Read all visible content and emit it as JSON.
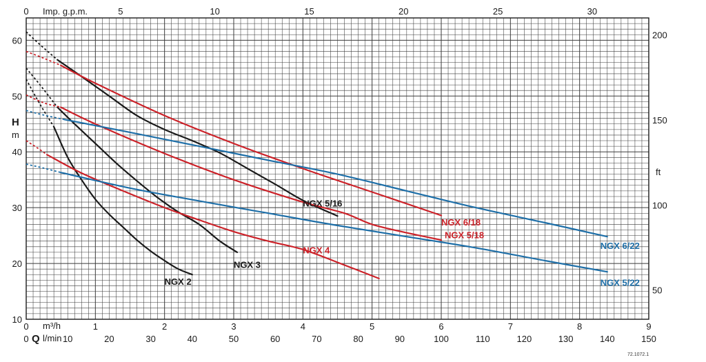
{
  "chart_data": {
    "type": "line",
    "title": "",
    "axes": {
      "bottom_primary": {
        "label": "m³/h",
        "range": [
          0,
          9
        ],
        "ticks": [
          0,
          1,
          2,
          3,
          4,
          5,
          6,
          7,
          8,
          9
        ],
        "tick_labels": [
          "0",
          "1",
          "2",
          "3",
          "4",
          "5",
          "6",
          "7",
          "8",
          "9"
        ]
      },
      "bottom_secondary": {
        "prefix": "Q",
        "label": "l/min",
        "range": [
          0,
          150
        ],
        "tick_labels": [
          "0",
          "10",
          "20",
          "30",
          "40",
          "50",
          "60",
          "70",
          "80",
          "90",
          "100",
          "110",
          "120",
          "130",
          "140",
          "150"
        ]
      },
      "top": {
        "label": "Imp. g.p.m.",
        "range": [
          0,
          33
        ],
        "ticks": [
          0,
          5,
          10,
          15,
          20,
          25,
          30
        ],
        "tick_labels": [
          "0",
          "5",
          "10",
          "15",
          "20",
          "25",
          "30"
        ]
      },
      "left": {
        "label_main": "H",
        "label_unit": "m",
        "range": [
          10,
          64
        ],
        "ticks": [
          10,
          20,
          30,
          40,
          50,
          60
        ],
        "tick_labels": [
          "10",
          "20",
          "30",
          "40",
          "50",
          "60"
        ]
      },
      "right": {
        "label": "ft",
        "range": [
          32.8,
          210
        ],
        "ticks": [
          50,
          100,
          150,
          200
        ],
        "tick_labels": [
          "50",
          "100",
          "150",
          "200"
        ]
      }
    },
    "grid": true,
    "series": [
      {
        "name": "NGX 2",
        "color": "#1a1a1a",
        "dashed": [
          [
            0,
            53
          ],
          [
            0.2,
            48.5
          ],
          [
            0.4,
            44.5
          ]
        ],
        "points": [
          [
            0.4,
            44.5
          ],
          [
            0.6,
            39
          ],
          [
            0.8,
            35
          ],
          [
            1.0,
            31.5
          ],
          [
            1.2,
            28.8
          ],
          [
            1.4,
            26.5
          ],
          [
            1.6,
            24.2
          ],
          [
            1.8,
            22.2
          ],
          [
            2.0,
            20.5
          ],
          [
            2.2,
            19
          ],
          [
            2.4,
            18
          ]
        ]
      },
      {
        "name": "NGX 3",
        "color": "#1a1a1a",
        "dashed": [
          [
            0,
            55
          ],
          [
            0.2,
            52
          ],
          [
            0.45,
            48
          ]
        ],
        "points": [
          [
            0.45,
            48
          ],
          [
            0.7,
            45
          ],
          [
            1.0,
            41.5
          ],
          [
            1.3,
            38
          ],
          [
            1.6,
            34.8
          ],
          [
            1.9,
            31.8
          ],
          [
            2.2,
            29.2
          ],
          [
            2.5,
            27
          ],
          [
            2.8,
            24
          ],
          [
            3.05,
            22
          ]
        ]
      },
      {
        "name": "NGX 4",
        "color": "#cc2229",
        "dashed": [
          [
            0,
            42
          ],
          [
            0.15,
            40.8
          ],
          [
            0.3,
            39.5
          ]
        ],
        "points": [
          [
            0.3,
            39.5
          ],
          [
            0.8,
            36.2
          ],
          [
            1.4,
            33
          ],
          [
            2.0,
            30
          ],
          [
            2.5,
            27.8
          ],
          [
            3.0,
            25.7
          ],
          [
            3.5,
            24
          ],
          [
            4.0,
            22.5
          ],
          [
            4.5,
            20.2
          ],
          [
            5.1,
            17.3
          ]
        ]
      },
      {
        "name": "NGX 5/16",
        "color": "#1a1a1a",
        "dashed": [
          [
            0,
            61.5
          ],
          [
            0.2,
            59.2
          ],
          [
            0.45,
            56.5
          ]
        ],
        "points": [
          [
            0.45,
            56.5
          ],
          [
            0.8,
            53.5
          ],
          [
            1.2,
            50
          ],
          [
            1.6,
            46.5
          ],
          [
            2.0,
            44
          ],
          [
            2.4,
            42
          ],
          [
            2.8,
            39.8
          ],
          [
            3.2,
            37
          ],
          [
            3.6,
            34.2
          ],
          [
            4.0,
            31.3
          ],
          [
            4.5,
            28.5
          ]
        ]
      },
      {
        "name": "NGX 5/18",
        "color": "#cc2229",
        "dashed": [
          [
            0,
            50.2
          ],
          [
            0.25,
            48.8
          ],
          [
            0.5,
            48
          ]
        ],
        "points": [
          [
            0.5,
            48
          ],
          [
            1.0,
            45
          ],
          [
            2.0,
            39.7
          ],
          [
            3.0,
            35
          ],
          [
            4.0,
            31
          ],
          [
            4.6,
            29
          ],
          [
            5.0,
            27
          ],
          [
            5.5,
            25.5
          ],
          [
            6.0,
            24.2
          ]
        ]
      },
      {
        "name": "NGX 6/18",
        "color": "#cc2229",
        "dashed": [
          [
            0,
            58
          ],
          [
            0.25,
            56.8
          ],
          [
            0.5,
            55.5
          ]
        ],
        "points": [
          [
            0.5,
            55.5
          ],
          [
            1.0,
            52.3
          ],
          [
            2.0,
            46.5
          ],
          [
            3.0,
            41.5
          ],
          [
            4.0,
            37
          ],
          [
            5.0,
            32.8
          ],
          [
            6.0,
            28.6
          ]
        ]
      },
      {
        "name": "NGX 5/22",
        "color": "#1e6fa8",
        "dashed": [
          [
            0,
            37.8
          ],
          [
            0.25,
            37.1
          ],
          [
            0.5,
            36.3
          ]
        ],
        "points": [
          [
            0.5,
            36.3
          ],
          [
            1.5,
            33.5
          ],
          [
            2.5,
            31.2
          ],
          [
            3.5,
            29
          ],
          [
            4.5,
            26.8
          ],
          [
            5.5,
            24.8
          ],
          [
            6.5,
            22.8
          ],
          [
            7.5,
            20.5
          ],
          [
            8.4,
            18.5
          ]
        ]
      },
      {
        "name": "NGX 6/22",
        "color": "#1e6fa8",
        "dashed": [
          [
            0,
            47.4
          ],
          [
            0.25,
            46.6
          ],
          [
            0.55,
            45.8
          ]
        ],
        "points": [
          [
            0.55,
            45.8
          ],
          [
            1.5,
            43.5
          ],
          [
            2.5,
            41
          ],
          [
            3.5,
            38.5
          ],
          [
            4.5,
            36
          ],
          [
            5.5,
            33
          ],
          [
            6.5,
            30
          ],
          [
            7.5,
            27.3
          ],
          [
            8.4,
            24.8
          ]
        ]
      }
    ],
    "labels": [
      {
        "text": "NGX 2",
        "x": 2.0,
        "y": 16.2,
        "color": "#1a1a1a"
      },
      {
        "text": "NGX 3",
        "x": 3.0,
        "y": 19.2,
        "color": "#1a1a1a"
      },
      {
        "text": "NGX 4",
        "x": 4.0,
        "y": 21.8,
        "color": "#cc2229"
      },
      {
        "text": "NGX 5/16",
        "x": 4.0,
        "y": 30.2,
        "color": "#1a1a1a"
      },
      {
        "text": "NGX 6/18",
        "x": 6.0,
        "y": 26.8,
        "color": "#cc2229"
      },
      {
        "text": "NGX 5/18",
        "x": 6.05,
        "y": 24.5,
        "color": "#cc2229"
      },
      {
        "text": "NGX 6/22",
        "x": 8.3,
        "y": 22.6,
        "color": "#1e6fa8"
      },
      {
        "text": "NGX 5/22",
        "x": 8.3,
        "y": 16.0,
        "color": "#1e6fa8"
      }
    ],
    "code": "72.1072.1"
  }
}
